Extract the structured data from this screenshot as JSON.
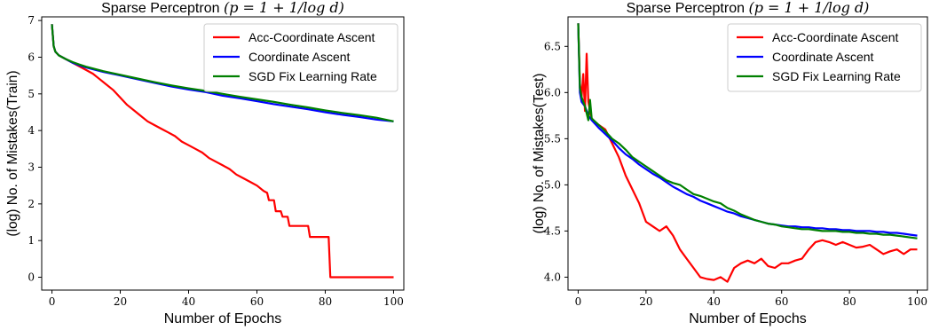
{
  "chart_data": [
    {
      "type": "line",
      "title": "Sparse Perceptron",
      "title_math": "(p = 1 + 1/log d)",
      "xlabel": "Number of Epochs",
      "ylabel": "(log) No. of Mistakes(Train)",
      "xlim": [
        -3,
        103
      ],
      "ylim": [
        -0.35,
        7.1
      ],
      "xticks": [
        0,
        20,
        40,
        60,
        80,
        100
      ],
      "xtick_labels": [
        "0",
        "20",
        "40",
        "60",
        "80",
        "100"
      ],
      "yticks": [
        0,
        1,
        2,
        3,
        4,
        5,
        6,
        7
      ],
      "ytick_labels": [
        "0",
        "1",
        "2",
        "3",
        "4",
        "5",
        "6",
        "7"
      ],
      "grid": false,
      "legend_position": "top-right",
      "series": [
        {
          "name": "Acc-Coordinate Ascent",
          "color": "#ff0000",
          "x": [
            0,
            0.5,
            1,
            2,
            4,
            6,
            8,
            10,
            12,
            14,
            16,
            18,
            20,
            22,
            24,
            26,
            28,
            30,
            32,
            34,
            36,
            38,
            40,
            42,
            44,
            46,
            48,
            50,
            52,
            54,
            56,
            58,
            60,
            62,
            63,
            63.5,
            65,
            65.5,
            67,
            67.5,
            69,
            69.5,
            71,
            71.5,
            75,
            75.5,
            80,
            80.5,
            81,
            81.5,
            90,
            100
          ],
          "y": [
            6.9,
            6.3,
            6.15,
            6.05,
            5.95,
            5.85,
            5.75,
            5.65,
            5.55,
            5.4,
            5.25,
            5.1,
            4.9,
            4.7,
            4.55,
            4.4,
            4.25,
            4.15,
            4.05,
            3.95,
            3.85,
            3.7,
            3.6,
            3.5,
            3.4,
            3.25,
            3.15,
            3.05,
            2.95,
            2.8,
            2.7,
            2.6,
            2.5,
            2.35,
            2.3,
            2.1,
            2.1,
            1.8,
            1.8,
            1.65,
            1.65,
            1.4,
            1.4,
            1.4,
            1.4,
            1.1,
            1.1,
            1.1,
            1.1,
            0.0,
            0.0,
            0.0
          ]
        },
        {
          "name": "Coordinate Ascent",
          "color": "#0000ff",
          "x": [
            0,
            0.5,
            1,
            2,
            4,
            6,
            8,
            10,
            15,
            20,
            25,
            30,
            35,
            40,
            45,
            50,
            55,
            60,
            65,
            70,
            75,
            80,
            85,
            90,
            95,
            100
          ],
          "y": [
            6.9,
            6.3,
            6.15,
            6.05,
            5.95,
            5.85,
            5.78,
            5.72,
            5.6,
            5.5,
            5.4,
            5.3,
            5.2,
            5.12,
            5.05,
            4.95,
            4.88,
            4.8,
            4.72,
            4.65,
            4.58,
            4.5,
            4.43,
            4.37,
            4.3,
            4.25
          ]
        },
        {
          "name": "SGD Fix Learning Rate",
          "color": "#008000",
          "x": [
            0,
            0.5,
            1,
            2,
            4,
            6,
            8,
            10,
            15,
            20,
            25,
            30,
            35,
            40,
            45,
            50,
            55,
            60,
            65,
            70,
            75,
            80,
            85,
            90,
            95,
            100
          ],
          "y": [
            6.9,
            6.3,
            6.15,
            6.05,
            5.95,
            5.87,
            5.8,
            5.74,
            5.62,
            5.52,
            5.42,
            5.32,
            5.23,
            5.15,
            5.08,
            5.0,
            4.92,
            4.85,
            4.78,
            4.7,
            4.63,
            4.55,
            4.48,
            4.42,
            4.35,
            4.25
          ]
        }
      ]
    },
    {
      "type": "line",
      "title": "Sparse Perceptron",
      "title_math": "(p = 1 + 1/log d)",
      "xlabel": "Number of Epochs",
      "ylabel": "(log) No. of Mistakes(Test)",
      "xlim": [
        -3,
        103
      ],
      "ylim": [
        3.86,
        6.82
      ],
      "xticks": [
        0,
        20,
        40,
        60,
        80,
        100
      ],
      "xtick_labels": [
        "0",
        "20",
        "40",
        "60",
        "80",
        "100"
      ],
      "yticks": [
        4.0,
        4.5,
        5.0,
        5.5,
        6.0,
        6.5
      ],
      "ytick_labels": [
        "4.0",
        "4.5",
        "5.0",
        "5.5",
        "6.0",
        "6.5"
      ],
      "grid": false,
      "legend_position": "top-right",
      "series": [
        {
          "name": "Acc-Coordinate Ascent",
          "color": "#ff0000",
          "x": [
            0,
            0.5,
            1,
            1.5,
            2,
            2.5,
            3,
            3.5,
            4,
            5,
            6,
            8,
            10,
            12,
            14,
            16,
            18,
            20,
            22,
            24,
            26,
            28,
            30,
            32,
            34,
            36,
            38,
            40,
            42,
            44,
            46,
            48,
            50,
            52,
            54,
            56,
            58,
            60,
            62,
            64,
            66,
            68,
            70,
            72,
            74,
            76,
            78,
            80,
            82,
            84,
            86,
            88,
            90,
            92,
            94,
            96,
            98,
            100
          ],
          "y": [
            6.75,
            6.1,
            5.95,
            6.2,
            5.8,
            6.42,
            5.9,
            5.8,
            5.72,
            5.68,
            5.65,
            5.6,
            5.45,
            5.3,
            5.1,
            4.95,
            4.8,
            4.6,
            4.55,
            4.5,
            4.55,
            4.45,
            4.3,
            4.2,
            4.1,
            4.0,
            3.98,
            3.97,
            4.0,
            3.95,
            4.1,
            4.15,
            4.18,
            4.15,
            4.2,
            4.12,
            4.1,
            4.15,
            4.15,
            4.18,
            4.2,
            4.3,
            4.38,
            4.4,
            4.38,
            4.35,
            4.38,
            4.35,
            4.32,
            4.33,
            4.35,
            4.3,
            4.25,
            4.28,
            4.3,
            4.25,
            4.3,
            4.3
          ]
        },
        {
          "name": "Coordinate Ascent",
          "color": "#0000ff",
          "x": [
            0,
            0.5,
            1,
            2,
            3,
            4,
            6,
            8,
            10,
            12,
            14,
            16,
            18,
            20,
            22,
            24,
            26,
            28,
            30,
            32,
            34,
            36,
            38,
            40,
            42,
            44,
            46,
            48,
            50,
            52,
            54,
            56,
            58,
            60,
            62,
            64,
            66,
            68,
            70,
            72,
            74,
            76,
            78,
            80,
            82,
            84,
            86,
            88,
            90,
            92,
            94,
            96,
            98,
            100
          ],
          "y": [
            6.75,
            6.0,
            5.9,
            5.85,
            5.75,
            5.7,
            5.62,
            5.55,
            5.48,
            5.4,
            5.33,
            5.28,
            5.22,
            5.17,
            5.12,
            5.08,
            5.03,
            4.98,
            4.94,
            4.9,
            4.87,
            4.83,
            4.8,
            4.77,
            4.74,
            4.71,
            4.69,
            4.66,
            4.64,
            4.62,
            4.6,
            4.58,
            4.57,
            4.56,
            4.55,
            4.55,
            4.54,
            4.54,
            4.53,
            4.53,
            4.52,
            4.52,
            4.51,
            4.51,
            4.5,
            4.5,
            4.5,
            4.49,
            4.49,
            4.48,
            4.48,
            4.47,
            4.46,
            4.45
          ]
        },
        {
          "name": "SGD Fix Learning Rate",
          "color": "#008000",
          "x": [
            0,
            0.5,
            1,
            2,
            3,
            3.5,
            4,
            6,
            8,
            10,
            12,
            14,
            16,
            18,
            20,
            22,
            24,
            26,
            28,
            30,
            32,
            34,
            36,
            38,
            40,
            42,
            44,
            46,
            48,
            50,
            52,
            54,
            56,
            58,
            60,
            62,
            64,
            66,
            68,
            70,
            72,
            74,
            76,
            78,
            80,
            82,
            84,
            86,
            88,
            90,
            92,
            94,
            96,
            98,
            100
          ],
          "y": [
            6.75,
            6.05,
            5.95,
            5.85,
            5.7,
            5.92,
            5.72,
            5.65,
            5.58,
            5.5,
            5.45,
            5.38,
            5.3,
            5.25,
            5.2,
            5.15,
            5.1,
            5.05,
            5.02,
            5.0,
            4.95,
            4.9,
            4.88,
            4.85,
            4.82,
            4.8,
            4.75,
            4.72,
            4.68,
            4.65,
            4.62,
            4.6,
            4.58,
            4.57,
            4.55,
            4.54,
            4.53,
            4.52,
            4.52,
            4.51,
            4.5,
            4.5,
            4.5,
            4.49,
            4.49,
            4.48,
            4.48,
            4.47,
            4.47,
            4.46,
            4.46,
            4.45,
            4.44,
            4.43,
            4.42
          ]
        }
      ]
    }
  ]
}
